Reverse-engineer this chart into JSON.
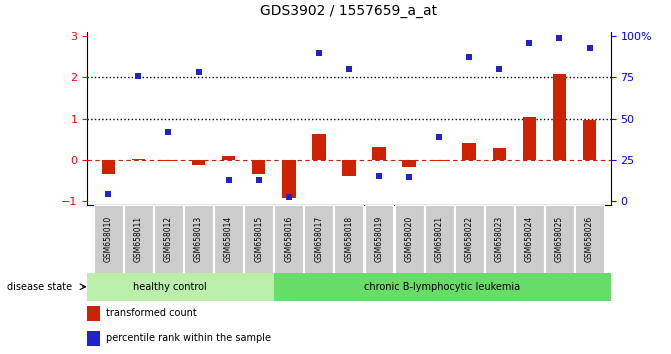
{
  "title": "GDS3902 / 1557659_a_at",
  "samples": [
    "GSM658010",
    "GSM658011",
    "GSM658012",
    "GSM658013",
    "GSM658014",
    "GSM658015",
    "GSM658016",
    "GSM658017",
    "GSM658018",
    "GSM658019",
    "GSM658020",
    "GSM658021",
    "GSM658022",
    "GSM658023",
    "GSM658024",
    "GSM658025",
    "GSM658026"
  ],
  "bar_values": [
    -0.35,
    0.02,
    -0.02,
    -0.13,
    0.1,
    -0.35,
    -0.93,
    0.63,
    -0.4,
    0.32,
    -0.17,
    -0.02,
    0.42,
    0.3,
    1.05,
    2.07,
    0.97
  ],
  "dot_values": [
    -0.82,
    2.02,
    0.68,
    2.12,
    -0.48,
    -0.48,
    -0.9,
    2.6,
    2.2,
    -0.38,
    -0.42,
    0.55,
    2.5,
    2.2,
    2.82,
    2.95,
    2.72
  ],
  "bar_color": "#cc2200",
  "dot_color": "#2222cc",
  "zero_line_color": "#cc2200",
  "dotted_line_color": "#000000",
  "ylim": [
    -1.1,
    3.1
  ],
  "yticks_left": [
    -1,
    0,
    1,
    2,
    3
  ],
  "healthy_count": 6,
  "disease_label_healthy": "healthy control",
  "disease_label_leukemia": "chronic B-lymphocytic leukemia",
  "bar_width": 0.45,
  "legend_bar_label": "transformed count",
  "legend_dot_label": "percentile rank within the sample",
  "bg_color": "#ffffff",
  "label_box_color": "#cccccc",
  "group_bg_healthy": "#bbeeaa",
  "group_bg_leukemia": "#66dd66"
}
